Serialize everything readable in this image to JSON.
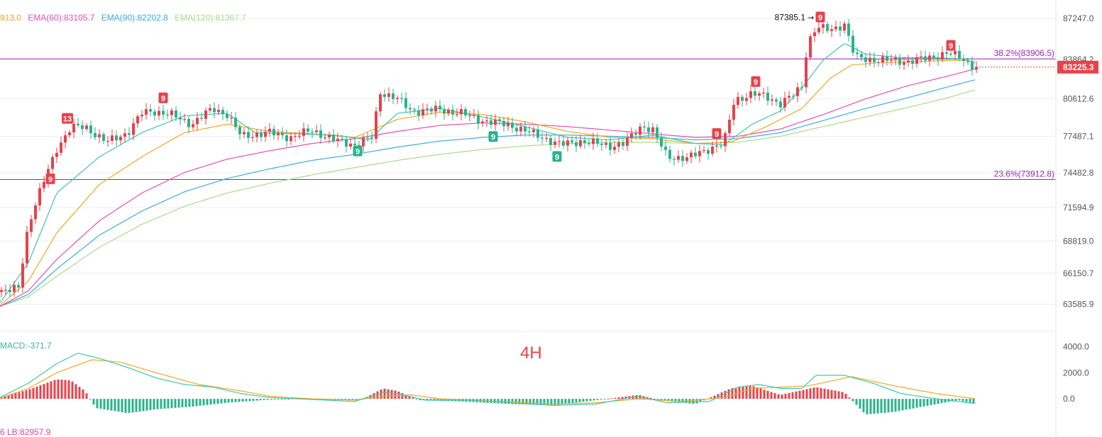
{
  "legend": {
    "ema_first_partial": "913.0",
    "ema60": "EMA(60):83105.7",
    "ema90": "EMA(90):82202.8",
    "ema120": "EMA(120):81367.7"
  },
  "colors": {
    "up": "#e8424b",
    "down": "#2bb28c",
    "ema_a": "#3dc8b0",
    "ema_b": "#f6a623",
    "ema60": "#e650b4",
    "ema90": "#3aaee0",
    "ema120": "#a9dc8c",
    "fib": "#a020c0",
    "price_tag": "#e8424b",
    "grid": "#eeeeee"
  },
  "timeframe": "4H",
  "macd_label": "MACD:-371.7",
  "lb_label": "6  LB:82957.9",
  "price_axis": [
    "87247.0",
    "83864.2",
    "80612.6",
    "77487.1",
    "74482.8",
    "71594.9",
    "68819.0",
    "66150.7",
    "63585.9"
  ],
  "macd_axis": [
    "4000.0",
    "2000.0",
    "0.0"
  ],
  "current_price": "83225.3",
  "high_marker": "87385.1",
  "fib_levels": [
    {
      "label": "38.2%(83906.5)",
      "price": 83906.5
    },
    {
      "label": "23.6%(73912.8)",
      "price": 73912.8
    }
  ],
  "td_markers": [
    {
      "label": "13",
      "type": "sell",
      "x": 95,
      "price": 78950
    },
    {
      "label": "9",
      "type": "sell",
      "x": 71,
      "price": 73950
    },
    {
      "label": "9",
      "type": "sell",
      "x": 230,
      "price": 80650
    },
    {
      "label": "9",
      "type": "sell",
      "x": 1065,
      "price": 82000
    },
    {
      "label": "9",
      "type": "sell",
      "x": 1010,
      "price": 77700
    },
    {
      "label": "9",
      "type": "sell",
      "x": 1156,
      "price": 87350
    },
    {
      "label": "9",
      "type": "sell",
      "x": 1340,
      "price": 85000
    },
    {
      "label": "9",
      "type": "buy",
      "x": 695,
      "price": 77450
    },
    {
      "label": "9",
      "type": "buy",
      "x": 504,
      "price": 76250
    },
    {
      "label": "9",
      "type": "buy",
      "x": 785,
      "price": 75800
    }
  ],
  "chart_data": {
    "type": "candlestick",
    "timeframe": "4H",
    "y_range": [
      62500,
      88200
    ],
    "key_points": [
      [
        0,
        64600
      ],
      [
        15,
        64700
      ],
      [
        26,
        65000
      ],
      [
        40,
        70200
      ],
      [
        60,
        73500
      ],
      [
        80,
        76500
      ],
      [
        100,
        78200
      ],
      [
        120,
        78300
      ],
      [
        150,
        77000
      ],
      [
        180,
        77800
      ],
      [
        200,
        79400
      ],
      [
        215,
        79600
      ],
      [
        240,
        79300
      ],
      [
        270,
        78500
      ],
      [
        300,
        79800
      ],
      [
        320,
        79300
      ],
      [
        340,
        77500
      ],
      [
        380,
        77800
      ],
      [
        410,
        77400
      ],
      [
        440,
        78000
      ],
      [
        470,
        77200
      ],
      [
        500,
        76800
      ],
      [
        525,
        77400
      ],
      [
        535,
        81200
      ],
      [
        560,
        80600
      ],
      [
        580,
        79600
      ],
      [
        620,
        79700
      ],
      [
        650,
        79400
      ],
      [
        680,
        78800
      ],
      [
        720,
        78400
      ],
      [
        760,
        77500
      ],
      [
        790,
        76800
      ],
      [
        820,
        77100
      ],
      [
        860,
        76700
      ],
      [
        880,
        76900
      ],
      [
        905,
        78400
      ],
      [
        920,
        78000
      ],
      [
        940,
        75800
      ],
      [
        970,
        75700
      ],
      [
        1000,
        76500
      ],
      [
        1020,
        76900
      ],
      [
        1035,
        80500
      ],
      [
        1060,
        81000
      ],
      [
        1080,
        80800
      ],
      [
        1100,
        80200
      ],
      [
        1120,
        81000
      ],
      [
        1130,
        81700
      ],
      [
        1138,
        85200
      ],
      [
        1150,
        86500
      ],
      [
        1170,
        86300
      ],
      [
        1190,
        86800
      ],
      [
        1205,
        84000
      ],
      [
        1240,
        83800
      ],
      [
        1280,
        83700
      ],
      [
        1310,
        84000
      ],
      [
        1335,
        84400
      ],
      [
        1355,
        84000
      ],
      [
        1365,
        83500
      ],
      [
        1376,
        83225
      ]
    ],
    "ema_fast": [
      [
        0,
        63700
      ],
      [
        40,
        67000
      ],
      [
        80,
        72800
      ],
      [
        140,
        75800
      ],
      [
        200,
        77800
      ],
      [
        260,
        79200
      ],
      [
        320,
        79400
      ],
      [
        360,
        77800
      ],
      [
        420,
        77700
      ],
      [
        470,
        77600
      ],
      [
        520,
        77200
      ],
      [
        560,
        79400
      ],
      [
        620,
        79800
      ],
      [
        680,
        79100
      ],
      [
        740,
        78300
      ],
      [
        800,
        77400
      ],
      [
        860,
        77200
      ],
      [
        920,
        77600
      ],
      [
        980,
        76900
      ],
      [
        1020,
        76800
      ],
      [
        1060,
        78500
      ],
      [
        1100,
        79600
      ],
      [
        1130,
        81500
      ],
      [
        1160,
        83800
      ],
      [
        1190,
        85200
      ],
      [
        1220,
        84300
      ],
      [
        1270,
        84000
      ],
      [
        1320,
        84000
      ],
      [
        1360,
        83900
      ],
      [
        1376,
        83500
      ]
    ],
    "ema_medium": [
      [
        0,
        63500
      ],
      [
        40,
        65500
      ],
      [
        80,
        69500
      ],
      [
        140,
        73500
      ],
      [
        200,
        75800
      ],
      [
        260,
        77800
      ],
      [
        320,
        78500
      ],
      [
        380,
        77900
      ],
      [
        440,
        77700
      ],
      [
        500,
        77400
      ],
      [
        560,
        78900
      ],
      [
        620,
        79500
      ],
      [
        680,
        79300
      ],
      [
        740,
        78700
      ],
      [
        800,
        77900
      ],
      [
        860,
        77400
      ],
      [
        920,
        77300
      ],
      [
        980,
        76900
      ],
      [
        1030,
        77000
      ],
      [
        1080,
        78300
      ],
      [
        1130,
        79800
      ],
      [
        1170,
        82300
      ],
      [
        1200,
        83400
      ],
      [
        1240,
        83600
      ],
      [
        1300,
        83700
      ],
      [
        1350,
        83800
      ],
      [
        1376,
        83700
      ]
    ],
    "ema60": [
      [
        0,
        63400
      ],
      [
        40,
        64700
      ],
      [
        80,
        67300
      ],
      [
        140,
        70500
      ],
      [
        200,
        72800
      ],
      [
        260,
        74500
      ],
      [
        320,
        75600
      ],
      [
        380,
        76300
      ],
      [
        440,
        76900
      ],
      [
        500,
        77300
      ],
      [
        560,
        77900
      ],
      [
        620,
        78400
      ],
      [
        680,
        78600
      ],
      [
        740,
        78500
      ],
      [
        800,
        78300
      ],
      [
        860,
        78000
      ],
      [
        920,
        77700
      ],
      [
        980,
        77400
      ],
      [
        1040,
        77500
      ],
      [
        1100,
        78100
      ],
      [
        1160,
        79300
      ],
      [
        1220,
        80600
      ],
      [
        1280,
        81700
      ],
      [
        1330,
        82400
      ],
      [
        1376,
        83105.7
      ]
    ],
    "ema90": [
      [
        0,
        63400
      ],
      [
        40,
        64400
      ],
      [
        80,
        66500
      ],
      [
        140,
        69300
      ],
      [
        200,
        71300
      ],
      [
        260,
        72900
      ],
      [
        320,
        74000
      ],
      [
        380,
        74800
      ],
      [
        440,
        75500
      ],
      [
        500,
        76000
      ],
      [
        560,
        76600
      ],
      [
        620,
        77100
      ],
      [
        680,
        77400
      ],
      [
        740,
        77600
      ],
      [
        800,
        77600
      ],
      [
        860,
        77500
      ],
      [
        920,
        77400
      ],
      [
        980,
        77200
      ],
      [
        1040,
        77300
      ],
      [
        1100,
        77800
      ],
      [
        1160,
        78800
      ],
      [
        1220,
        79800
      ],
      [
        1280,
        80700
      ],
      [
        1330,
        81500
      ],
      [
        1376,
        82202.8
      ]
    ],
    "ema120": [
      [
        0,
        63400
      ],
      [
        40,
        64200
      ],
      [
        80,
        65900
      ],
      [
        140,
        68300
      ],
      [
        200,
        70200
      ],
      [
        260,
        71700
      ],
      [
        320,
        72800
      ],
      [
        380,
        73600
      ],
      [
        440,
        74300
      ],
      [
        500,
        74900
      ],
      [
        560,
        75500
      ],
      [
        620,
        76000
      ],
      [
        680,
        76400
      ],
      [
        740,
        76700
      ],
      [
        800,
        76900
      ],
      [
        860,
        77000
      ],
      [
        920,
        77000
      ],
      [
        980,
        76900
      ],
      [
        1040,
        77000
      ],
      [
        1100,
        77500
      ],
      [
        1160,
        78300
      ],
      [
        1220,
        79100
      ],
      [
        1280,
        79900
      ],
      [
        1330,
        80600
      ],
      [
        1376,
        81367.7
      ]
    ],
    "macd_range": [
      -2000,
      4400
    ],
    "macd_line": [
      [
        0,
        100
      ],
      [
        40,
        1200
      ],
      [
        80,
        2700
      ],
      [
        110,
        3500
      ],
      [
        140,
        3100
      ],
      [
        180,
        2400
      ],
      [
        220,
        1600
      ],
      [
        260,
        1100
      ],
      [
        300,
        900
      ],
      [
        340,
        400
      ],
      [
        380,
        100
      ],
      [
        420,
        0
      ],
      [
        460,
        -100
      ],
      [
        500,
        -200
      ],
      [
        540,
        500
      ],
      [
        560,
        400
      ],
      [
        600,
        -100
      ],
      [
        660,
        -100
      ],
      [
        720,
        -300
      ],
      [
        780,
        -500
      ],
      [
        840,
        -400
      ],
      [
        900,
        200
      ],
      [
        940,
        -300
      ],
      [
        1000,
        -200
      ],
      [
        1040,
        900
      ],
      [
        1070,
        1100
      ],
      [
        1100,
        800
      ],
      [
        1130,
        800
      ],
      [
        1150,
        1800
      ],
      [
        1190,
        1800
      ],
      [
        1230,
        1200
      ],
      [
        1270,
        400
      ],
      [
        1320,
        0
      ],
      [
        1376,
        -371.7
      ]
    ],
    "signal_line": [
      [
        0,
        50
      ],
      [
        40,
        800
      ],
      [
        80,
        2000
      ],
      [
        130,
        3000
      ],
      [
        170,
        2800
      ],
      [
        220,
        2000
      ],
      [
        280,
        1100
      ],
      [
        340,
        600
      ],
      [
        380,
        200
      ],
      [
        440,
        0
      ],
      [
        500,
        -100
      ],
      [
        540,
        200
      ],
      [
        580,
        300
      ],
      [
        620,
        0
      ],
      [
        700,
        -200
      ],
      [
        780,
        -400
      ],
      [
        840,
        -300
      ],
      [
        900,
        0
      ],
      [
        960,
        -200
      ],
      [
        1020,
        100
      ],
      [
        1060,
        800
      ],
      [
        1100,
        900
      ],
      [
        1140,
        1000
      ],
      [
        1200,
        1700
      ],
      [
        1260,
        1000
      ],
      [
        1320,
        400
      ],
      [
        1376,
        0
      ]
    ],
    "macd_hist": [
      [
        0,
        100
      ],
      [
        40,
        700
      ],
      [
        80,
        1500
      ],
      [
        100,
        1400
      ],
      [
        120,
        600
      ],
      [
        135,
        -700
      ],
      [
        180,
        -1100
      ],
      [
        220,
        -800
      ],
      [
        270,
        -600
      ],
      [
        320,
        -300
      ],
      [
        370,
        -100
      ],
      [
        420,
        50
      ],
      [
        470,
        -100
      ],
      [
        510,
        -50
      ],
      [
        540,
        800
      ],
      [
        560,
        600
      ],
      [
        590,
        -100
      ],
      [
        650,
        -200
      ],
      [
        720,
        -400
      ],
      [
        780,
        -500
      ],
      [
        840,
        -100
      ],
      [
        900,
        300
      ],
      [
        930,
        -100
      ],
      [
        980,
        -400
      ],
      [
        1030,
        800
      ],
      [
        1060,
        1000
      ],
      [
        1100,
        300
      ],
      [
        1150,
        900
      ],
      [
        1190,
        500
      ],
      [
        1220,
        -1200
      ],
      [
        1260,
        -1000
      ],
      [
        1310,
        -500
      ],
      [
        1350,
        -100
      ],
      [
        1376,
        -400
      ]
    ]
  }
}
